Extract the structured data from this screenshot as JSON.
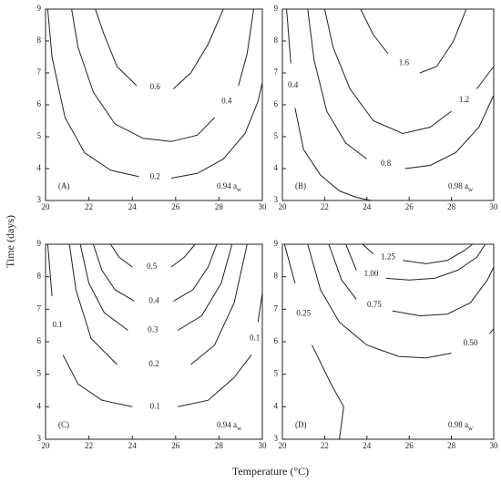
{
  "figure": {
    "xlabel": "Temperature (°C)",
    "ylabel": "Time (days)"
  },
  "chart_data": [
    {
      "type": "contour",
      "panel": "(A)",
      "annotation": "0.94 a",
      "annotation_sub": "w",
      "color": "#222",
      "xlim": [
        20,
        30
      ],
      "ylim": [
        3,
        9
      ],
      "xticks": [
        20,
        22,
        24,
        26,
        28,
        30
      ],
      "yticks": [
        3,
        4,
        5,
        6,
        7,
        8,
        9
      ],
      "series": [
        {
          "name": "0.6",
          "x": [
            22.3,
            22.7,
            23.3,
            24.2,
            null,
            25.9,
            26.7,
            27.5,
            28.2
          ],
          "values": [
            9,
            8.2,
            7.2,
            6.6,
            null,
            6.5,
            7,
            7.9,
            9
          ]
        },
        {
          "name": "0.4",
          "x": [
            21.2,
            21.5,
            22.2,
            23.2,
            24.5,
            25.8,
            27,
            27.8,
            null,
            28.9,
            29.3,
            29.6
          ],
          "values": [
            9,
            7.8,
            6.4,
            5.4,
            4.95,
            4.85,
            5.05,
            5.6,
            null,
            6.6,
            7.6,
            9
          ]
        },
        {
          "name": "0.2",
          "x": [
            20.1,
            20.3,
            20.9,
            21.8,
            23,
            24.3,
            null,
            25.8,
            27,
            28.2,
            29.2,
            29.8,
            30
          ],
          "values": [
            9,
            7.5,
            5.6,
            4.5,
            3.95,
            3.75,
            null,
            3.7,
            3.85,
            4.3,
            5.1,
            6.1,
            6.7
          ]
        }
      ]
    },
    {
      "type": "contour",
      "panel": "(B)",
      "annotation": "0.98 a",
      "annotation_sub": "w",
      "color": "#222",
      "xlim": [
        20,
        30
      ],
      "ylim": [
        3,
        9
      ],
      "xticks": [
        20,
        22,
        24,
        26,
        28,
        30
      ],
      "yticks": [
        3,
        4,
        5,
        6,
        7,
        8,
        9
      ],
      "series": [
        {
          "name": "1.6",
          "x": [
            23.7,
            24.3,
            25,
            null,
            26.5,
            27.3,
            28.1,
            28.7
          ],
          "values": [
            9,
            8.2,
            7.6,
            null,
            7,
            7.2,
            8,
            9
          ]
        },
        {
          "name": "1.2",
          "x": [
            22,
            22.4,
            23.2,
            24.3,
            25.7,
            27,
            28,
            null,
            29.2,
            30
          ],
          "values": [
            9,
            7.8,
            6.5,
            5.5,
            5.1,
            5.3,
            5.8,
            null,
            6.5,
            7.2
          ]
        },
        {
          "name": "0.8",
          "x": [
            21.2,
            21.5,
            22.1,
            23,
            24,
            null,
            25.8,
            27,
            28.2,
            29.3,
            30
          ],
          "values": [
            9,
            7.4,
            5.8,
            4.8,
            4.3,
            null,
            4,
            4.1,
            4.5,
            5.3,
            6.3
          ]
        },
        {
          "name": "0.4",
          "x": [
            20.2,
            20.4,
            null,
            20.6,
            21,
            21.8,
            22.7,
            23.5,
            24.2
          ],
          "values": [
            9,
            7.3,
            null,
            5.9,
            4.6,
            3.8,
            3.3,
            3.1,
            3
          ]
        }
      ]
    },
    {
      "type": "contour",
      "panel": "(C)",
      "annotation": "0.94 a",
      "annotation_sub": "w",
      "color": "#222",
      "xlim": [
        20,
        30
      ],
      "ylim": [
        3,
        9
      ],
      "xticks": [
        20,
        22,
        24,
        26,
        28,
        30
      ],
      "yticks": [
        3,
        4,
        5,
        6,
        7,
        8,
        9
      ],
      "series": [
        {
          "name": "0.5",
          "x": [
            23,
            23.4,
            24,
            null,
            25.8,
            26.4,
            26.9
          ],
          "values": [
            9,
            8.6,
            8.3,
            null,
            8.3,
            8.6,
            9
          ]
        },
        {
          "name": "0.4",
          "x": [
            22.2,
            22.6,
            23.2,
            24.1,
            null,
            25.9,
            26.8,
            27.5,
            27.9
          ],
          "values": [
            9,
            8.2,
            7.6,
            7.25,
            null,
            7.25,
            7.6,
            8.3,
            9
          ]
        },
        {
          "name": "0.3",
          "x": [
            21.6,
            22,
            22.7,
            23.8,
            null,
            26.1,
            27.2,
            28.1,
            28.6
          ],
          "values": [
            9,
            7.8,
            6.9,
            6.35,
            null,
            6.35,
            6.8,
            7.8,
            9
          ]
        },
        {
          "name": "0.2",
          "x": [
            21.1,
            21.4,
            22.1,
            23.3,
            null,
            26.7,
            27.8,
            28.7,
            29.3
          ],
          "values": [
            9,
            7.6,
            6.1,
            5.3,
            null,
            5.3,
            5.9,
            7.2,
            9
          ]
        },
        {
          "name": "0.1",
          "x": [
            20.1,
            20.3,
            null,
            20.8,
            21.5,
            22.6,
            24,
            null,
            26.1,
            27.5,
            28.7,
            29.5,
            null,
            29.8,
            30
          ],
          "values": [
            9,
            7.4,
            null,
            5.6,
            4.7,
            4.2,
            4,
            null,
            4,
            4.2,
            4.9,
            5.6,
            null,
            6.6,
            7.5
          ]
        }
      ]
    },
    {
      "type": "contour",
      "panel": "(D)",
      "annotation": "0.98 a",
      "annotation_sub": "w",
      "color": "#222",
      "xlim": [
        20,
        30
      ],
      "ylim": [
        3,
        9
      ],
      "xticks": [
        20,
        22,
        24,
        26,
        28,
        30
      ],
      "yticks": [
        3,
        4,
        5,
        6,
        7,
        8,
        9
      ],
      "series": [
        {
          "name": "1.25",
          "x": [
            23.8,
            24.3,
            null,
            25.7,
            26.8,
            27.8,
            28.6,
            29
          ],
          "values": [
            9,
            8.7,
            null,
            8.5,
            8.4,
            8.5,
            8.8,
            9
          ]
        },
        {
          "name": "1.00",
          "x": [
            23,
            23.5,
            null,
            24.9,
            26,
            27.2,
            28.3,
            29.2,
            29.6
          ],
          "values": [
            9,
            8.2,
            null,
            7.95,
            7.9,
            7.95,
            8.2,
            8.6,
            9
          ]
        },
        {
          "name": "0.75",
          "x": [
            22.2,
            22.8,
            23.5,
            null,
            25.2,
            26.5,
            27.8,
            28.9,
            29.7,
            30
          ],
          "values": [
            9,
            7.9,
            7.3,
            null,
            6.95,
            6.8,
            6.85,
            7.2,
            7.9,
            8.3
          ]
        },
        {
          "name": "0.50",
          "x": [
            21.2,
            21.8,
            22.7,
            24,
            25.5,
            26.8,
            28,
            null,
            29.8,
            30
          ],
          "values": [
            9,
            7.6,
            6.6,
            5.9,
            5.55,
            5.5,
            5.65,
            null,
            6.25,
            6.4
          ]
        },
        {
          "name": "0.25",
          "x": [
            20.1,
            20.6,
            null,
            21.4,
            22.3,
            22.9,
            22.8,
            22.7
          ],
          "values": [
            9,
            7.8,
            null,
            5.9,
            4.7,
            4,
            3.5,
            3
          ]
        }
      ]
    }
  ]
}
